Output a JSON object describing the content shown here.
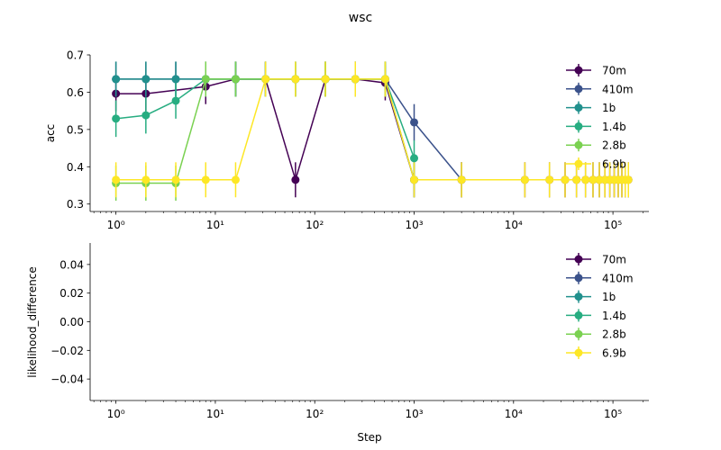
{
  "figure_title": "wsc",
  "x_label": "Step",
  "x_ticks": [
    {
      "value": 1,
      "label": "10⁰"
    },
    {
      "value": 10,
      "label": "10¹"
    },
    {
      "value": 100,
      "label": "10²"
    },
    {
      "value": 1000,
      "label": "10³"
    },
    {
      "value": 10000,
      "label": "10⁴"
    },
    {
      "value": 100000,
      "label": "10⁵"
    }
  ],
  "chart_data": [
    {
      "type": "line",
      "panel": "top",
      "ylabel": "acc",
      "xscale": "log",
      "xlim": [
        0.55,
        230000
      ],
      "ylim": [
        0.28,
        0.7
      ],
      "yticks": [
        0.3,
        0.4,
        0.5,
        0.6,
        0.7
      ],
      "ytick_labels": [
        "0.3",
        "0.4",
        "0.5",
        "0.6",
        "0.7"
      ],
      "legend_position": "right",
      "series": [
        {
          "name": "70m",
          "color": "#440154",
          "x": [
            1,
            2,
            8,
            16,
            32,
            64,
            128,
            256,
            512,
            1000,
            3000,
            13000,
            23000,
            33000,
            43000,
            53000,
            63000,
            73000,
            83000,
            93000,
            103000,
            113000,
            123000,
            133000,
            143000
          ],
          "y": [
            0.596,
            0.596,
            0.615,
            0.635,
            0.635,
            0.365,
            0.635,
            0.635,
            0.625,
            0.365,
            0.365,
            0.365,
            0.365,
            0.365,
            0.365,
            0.365,
            0.365,
            0.365,
            0.365,
            0.365,
            0.365,
            0.365,
            0.365,
            0.365,
            0.365
          ],
          "err": [
            0.047,
            0.047,
            0.047,
            0.047,
            0.047,
            0.047,
            0.047,
            0.047,
            0.047,
            0.047,
            0.047,
            0.047,
            0.047,
            0.047,
            0.047,
            0.047,
            0.047,
            0.047,
            0.047,
            0.047,
            0.047,
            0.047,
            0.047,
            0.047,
            0.047
          ]
        },
        {
          "name": "410m",
          "color": "#3b528b",
          "x": [
            1,
            2,
            4,
            8,
            16,
            32,
            64,
            128,
            256,
            512,
            1000,
            3000
          ],
          "y": [
            0.635,
            0.635,
            0.635,
            0.635,
            0.635,
            0.635,
            0.635,
            0.635,
            0.635,
            0.635,
            0.519,
            0.365
          ],
          "err": [
            0.047,
            0.047,
            0.047,
            0.047,
            0.047,
            0.047,
            0.047,
            0.047,
            0.047,
            0.047,
            0.049,
            0.047
          ]
        },
        {
          "name": "1b",
          "color": "#21908d",
          "x": [
            1,
            2,
            4,
            8,
            16,
            32,
            64,
            128,
            256,
            512,
            1000
          ],
          "y": [
            0.635,
            0.635,
            0.635,
            0.635,
            0.635,
            0.635,
            0.635,
            0.635,
            0.635,
            0.635,
            0.365
          ],
          "err": [
            0.047,
            0.047,
            0.047,
            0.047,
            0.047,
            0.047,
            0.047,
            0.047,
            0.047,
            0.047,
            0.047
          ]
        },
        {
          "name": "1.4b",
          "color": "#27ad81",
          "x": [
            1,
            2,
            4,
            8,
            16,
            32,
            64,
            128,
            256,
            512,
            1000
          ],
          "y": [
            0.529,
            0.538,
            0.577,
            0.635,
            0.635,
            0.635,
            0.635,
            0.635,
            0.635,
            0.635,
            0.423
          ],
          "err": [
            0.049,
            0.049,
            0.048,
            0.047,
            0.047,
            0.047,
            0.047,
            0.047,
            0.047,
            0.047,
            0.048
          ]
        },
        {
          "name": "2.8b",
          "color": "#7ad151",
          "x": [
            1,
            2,
            4,
            8,
            16,
            32,
            64,
            128,
            256,
            512
          ],
          "y": [
            0.356,
            0.356,
            0.356,
            0.635,
            0.635,
            0.635,
            0.635,
            0.635,
            0.635,
            0.635
          ],
          "err": [
            0.047,
            0.047,
            0.047,
            0.047,
            0.047,
            0.047,
            0.047,
            0.047,
            0.047,
            0.047
          ]
        },
        {
          "name": "6.9b",
          "color": "#fde725",
          "x": [
            1,
            2,
            4,
            8,
            16,
            32,
            64,
            128,
            256,
            512,
            1000,
            3000,
            13000,
            23000,
            33000,
            43000,
            53000,
            63000,
            73000,
            83000,
            93000,
            103000,
            113000,
            123000,
            133000,
            143000
          ],
          "y": [
            0.365,
            0.365,
            0.365,
            0.365,
            0.365,
            0.635,
            0.635,
            0.635,
            0.635,
            0.635,
            0.365,
            0.365,
            0.365,
            0.365,
            0.365,
            0.365,
            0.365,
            0.365,
            0.365,
            0.365,
            0.365,
            0.365,
            0.365,
            0.365,
            0.365,
            0.365
          ],
          "err": [
            0.047,
            0.047,
            0.047,
            0.047,
            0.047,
            0.047,
            0.047,
            0.047,
            0.047,
            0.047,
            0.047,
            0.047,
            0.047,
            0.047,
            0.047,
            0.047,
            0.047,
            0.047,
            0.047,
            0.047,
            0.047,
            0.047,
            0.047,
            0.047,
            0.047,
            0.047
          ]
        }
      ]
    },
    {
      "type": "line",
      "panel": "bottom",
      "ylabel": "likelihood_difference",
      "xscale": "log",
      "xlim": [
        0.55,
        230000
      ],
      "ylim": [
        -0.055,
        0.055
      ],
      "yticks": [
        -0.04,
        -0.02,
        0.0,
        0.02,
        0.04
      ],
      "ytick_labels": [
        "−0.04",
        "−0.02",
        "0.00",
        "0.02",
        "0.04"
      ],
      "legend_position": "right",
      "series": [
        {
          "name": "70m",
          "color": "#440154",
          "x": [],
          "y": []
        },
        {
          "name": "410m",
          "color": "#3b528b",
          "x": [],
          "y": []
        },
        {
          "name": "1b",
          "color": "#21908d",
          "x": [],
          "y": []
        },
        {
          "name": "1.4b",
          "color": "#27ad81",
          "x": [],
          "y": []
        },
        {
          "name": "2.8b",
          "color": "#7ad151",
          "x": [],
          "y": []
        },
        {
          "name": "6.9b",
          "color": "#fde725",
          "x": [],
          "y": []
        }
      ]
    }
  ]
}
